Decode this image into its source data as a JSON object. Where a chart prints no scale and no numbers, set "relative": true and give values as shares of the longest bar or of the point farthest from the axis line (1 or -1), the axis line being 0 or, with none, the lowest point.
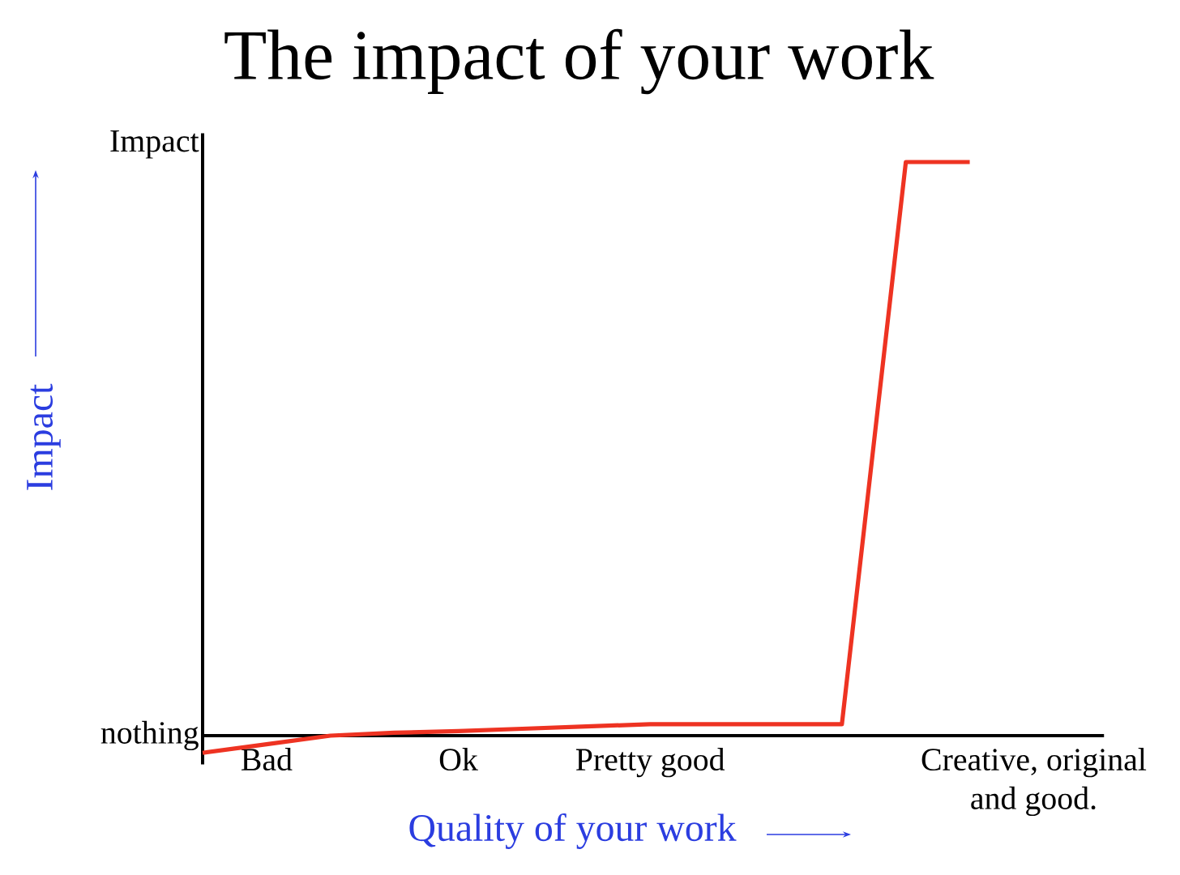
{
  "chart_data": {
    "type": "line",
    "title": "The impact of your work",
    "xlabel": "Quality of your work",
    "ylabel": "Impact",
    "annotations": [
      "Impact",
      "nothing"
    ],
    "relative": true,
    "categories": [
      null,
      "Bad",
      null,
      null,
      "Ok",
      null,
      null,
      "Pretty good",
      null,
      null,
      null,
      null,
      null,
      "Creative, original and good."
    ],
    "series": [
      {
        "color": "#ee3322",
        "values": [
          -0.03,
          -0.015,
          0,
          0.005,
          0.008,
          0.012,
          0.016,
          0.02,
          0.02,
          0.02,
          0.02,
          1,
          1,
          null
        ]
      }
    ]
  }
}
